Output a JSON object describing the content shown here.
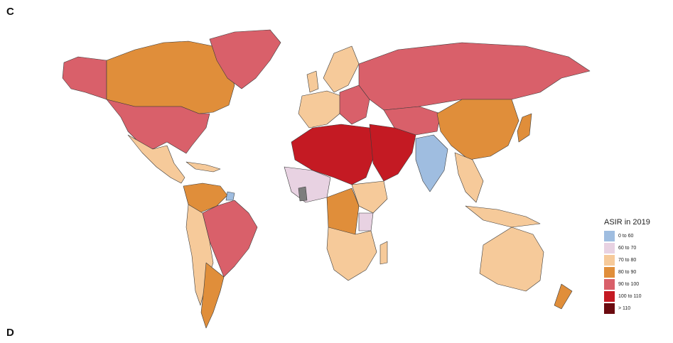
{
  "panels": {
    "top_label": "C",
    "bottom_label": "D"
  },
  "legend": {
    "title": "ASIR in 2019",
    "bins": [
      {
        "label": "0 to 60",
        "color": "#9fbde0"
      },
      {
        "label": "60 to 70",
        "color": "#e8d2e2"
      },
      {
        "label": "70 to 80",
        "color": "#f6ca9a"
      },
      {
        "label": "80 to 90",
        "color": "#e08e3a"
      },
      {
        "label": "90 to 100",
        "color": "#d9606a"
      },
      {
        "label": "100 to 110",
        "color": "#c41a23"
      },
      {
        "label": "> 110",
        "color": "#6b0a0f"
      }
    ],
    "no_data_color": "#7d7d7d"
  }
}
